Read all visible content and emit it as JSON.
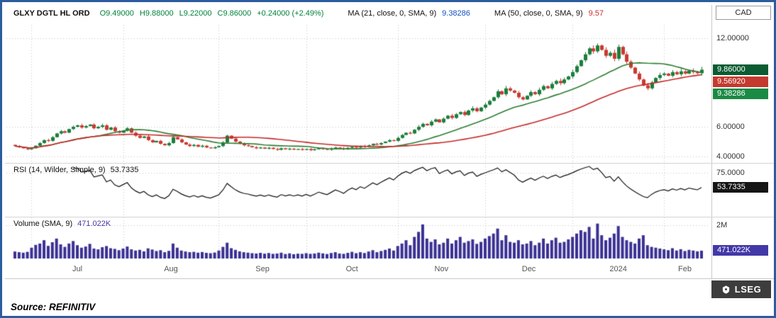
{
  "header": {
    "symbol": "GLXY DGTL HL ORD",
    "open": "O9.49000",
    "high": "H9.88000",
    "low": "L9.22000",
    "close": "C9.86000",
    "change": "+0.24000 (+2.49%)",
    "ma21_label": "MA (21, close, 0, SMA, 9)",
    "ma21_value": "9.38286",
    "ma50_label": "MA (50, close, 0, SMA, 9)",
    "ma50_value": "9.57",
    "currency": "CAD"
  },
  "price_axis": {
    "labels": [
      "12.00000",
      "6.00000",
      "4.00000"
    ],
    "badges": [
      {
        "text": "9.86000",
        "level": 9.86,
        "color": "#0b5c32"
      },
      {
        "text": "9.56920",
        "level": 9.5692,
        "color": "#c43a2f"
      },
      {
        "text": "9.38286",
        "level": 9.38286,
        "color": "#1b8a44"
      }
    ]
  },
  "rsi_panel": {
    "label": "RSI (14, Wilder, Simple, 9)",
    "value": "53.7335",
    "axis_label": "75.0000",
    "badge": "53.7335",
    "level": 53.7335,
    "badge_color": "#151515"
  },
  "volume_panel": {
    "label": "Volume (SMA, 9)",
    "value": "471.022K",
    "axis_label": "2M",
    "badge": "471.022K",
    "level": 471.022,
    "badge_color": "#4338a8"
  },
  "footer": {
    "source": "Source: REFINITIV",
    "logo": "LSEG"
  },
  "colors": {
    "candle_up": "#1b7e3c",
    "candle_down": "#c93a31",
    "ma21": "#2e7d32",
    "ma50": "#c62828",
    "rsi_line": "#111111",
    "volume_bar": "#3b3193",
    "grid": "#c4c4c4",
    "frame_border": "#2d5c9e"
  },
  "chart_data": {
    "type": "candlestick",
    "title": "GLXY DGTL HL ORD daily price with SMA(21), SMA(50), RSI(14) and Volume",
    "x_ticks": [
      {
        "label": "Jul",
        "index": 4
      },
      {
        "label": "Aug",
        "index": 26
      },
      {
        "label": "Sep",
        "index": 49
      },
      {
        "label": "Oct",
        "index": 70
      },
      {
        "label": "Nov",
        "index": 92
      },
      {
        "label": "Dec",
        "index": 113
      },
      {
        "label": "2024",
        "index": 134
      },
      {
        "label": "Feb",
        "index": 156
      }
    ],
    "price": {
      "ylim": [
        3.8,
        12.8
      ],
      "gridlines": [
        12,
        6,
        4
      ],
      "last": 9.86,
      "closes": [
        4.7,
        4.62,
        4.55,
        4.48,
        4.55,
        4.72,
        4.9,
        5.1,
        5.05,
        5.3,
        5.55,
        5.7,
        5.6,
        5.85,
        6.0,
        6.1,
        5.95,
        6.05,
        6.15,
        5.9,
        6.0,
        6.1,
        5.8,
        5.95,
        5.7,
        5.6,
        5.75,
        5.9,
        5.6,
        5.4,
        5.25,
        5.35,
        5.1,
        4.95,
        5.05,
        4.85,
        4.75,
        4.9,
        5.3,
        5.15,
        4.95,
        4.8,
        4.7,
        4.78,
        4.65,
        4.72,
        4.6,
        4.55,
        4.62,
        4.7,
        4.95,
        5.4,
        5.2,
        5.0,
        4.85,
        4.75,
        4.7,
        4.62,
        4.55,
        4.6,
        4.52,
        4.58,
        4.5,
        4.45,
        4.55,
        4.48,
        4.52,
        4.46,
        4.5,
        4.44,
        4.5,
        4.42,
        4.48,
        4.55,
        4.5,
        4.45,
        4.52,
        4.6,
        4.55,
        4.48,
        4.58,
        4.65,
        4.6,
        4.7,
        4.65,
        4.75,
        4.85,
        4.8,
        4.9,
        5.0,
        5.1,
        5.05,
        5.25,
        5.45,
        5.6,
        5.55,
        5.8,
        6.0,
        6.2,
        6.1,
        6.35,
        6.5,
        6.3,
        6.55,
        6.75,
        6.6,
        6.85,
        7.0,
        6.8,
        7.1,
        7.25,
        7.05,
        7.3,
        7.5,
        7.75,
        8.0,
        8.4,
        8.2,
        8.6,
        8.45,
        8.3,
        8.0,
        7.85,
        8.1,
        8.35,
        8.2,
        8.5,
        8.75,
        8.6,
        8.9,
        9.1,
        8.95,
        9.2,
        9.4,
        9.7,
        10.1,
        10.5,
        10.9,
        11.3,
        11.1,
        11.5,
        11.2,
        10.8,
        11.0,
        10.6,
        11.4,
        10.9,
        10.4,
        10.0,
        9.6,
        9.2,
        8.8,
        8.6,
        9.0,
        9.3,
        9.5,
        9.6,
        9.45,
        9.7,
        9.55,
        9.75,
        9.6,
        9.8,
        9.7,
        9.62,
        9.86
      ]
    },
    "overlays": [
      {
        "name": "SMA 21",
        "window": 21,
        "current": 9.38286
      },
      {
        "name": "SMA 50",
        "window": 50,
        "current": 9.57
      }
    ],
    "rsi": {
      "window": 14,
      "gridline": 75,
      "range": [
        15,
        85
      ],
      "current": 53.7335
    },
    "volume": {
      "unit": "K",
      "ymax": 2300,
      "gridline": 2000,
      "sma_window": 9,
      "sma_current": 471.022,
      "values": [
        420,
        380,
        350,
        400,
        650,
        820,
        900,
        1100,
        760,
        980,
        1200,
        850,
        700,
        900,
        1050,
        800,
        650,
        720,
        880,
        600,
        550,
        680,
        750,
        620,
        580,
        500,
        600,
        720,
        550,
        480,
        520,
        430,
        610,
        540,
        450,
        500,
        380,
        460,
        900,
        650,
        480,
        420,
        380,
        400,
        350,
        390,
        340,
        320,
        360,
        480,
        700,
        950,
        620,
        520,
        430,
        380,
        350,
        320,
        300,
        340,
        290,
        330,
        280,
        300,
        350,
        270,
        310,
        260,
        290,
        280,
        320,
        280,
        300,
        350,
        310,
        270,
        330,
        380,
        300,
        280,
        340,
        400,
        320,
        380,
        330,
        420,
        500,
        380,
        450,
        520,
        600,
        480,
        750,
        900,
        1100,
        800,
        1300,
        1600,
        2050,
        1200,
        1000,
        1150,
        850,
        950,
        1200,
        900,
        1100,
        1300,
        950,
        1050,
        1150,
        880,
        1000,
        1200,
        1350,
        1500,
        1800,
        1100,
        1400,
        1000,
        950,
        1100,
        850,
        900,
        1050,
        800,
        950,
        1200,
        900,
        1100,
        1250,
        950,
        1000,
        1150,
        1300,
        1500,
        1700,
        1600,
        1900,
        1200,
        2100,
        1400,
        1100,
        1250,
        1500,
        1950,
        1300,
        1100,
        1000,
        900,
        1200,
        1400,
        800,
        700,
        650,
        600,
        550,
        500,
        620,
        480,
        560,
        450,
        520,
        480,
        430,
        471
      ]
    }
  }
}
